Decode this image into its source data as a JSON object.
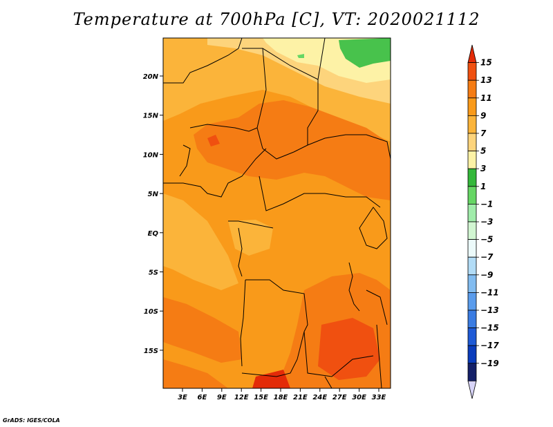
{
  "title": "Temperature at 700hPa [C], VT: 2020021112",
  "credit": "GrADS: IGES/COLA",
  "map": {
    "lat_labels": [
      "20N",
      "15N",
      "10N",
      "5N",
      "EQ",
      "5S",
      "10S",
      "15S"
    ],
    "lon_labels": [
      "3E",
      "6E",
      "9E",
      "12E",
      "15E",
      "18E",
      "21E",
      "24E",
      "27E",
      "30E",
      "33E"
    ]
  },
  "colorbar": {
    "levels": [
      "15",
      "13",
      "11",
      "9",
      "7",
      "5",
      "3",
      "1",
      "−1",
      "−3",
      "−5",
      "−7",
      "−9",
      "−11",
      "−13",
      "−15",
      "−17",
      "−19"
    ],
    "colors": [
      "#e32b08",
      "#f05010",
      "#f57c14",
      "#f99a1a",
      "#fbb43a",
      "#fdd47c",
      "#fdf2a6",
      "#34b83a",
      "#66d664",
      "#a0ecaa",
      "#d2f6d2",
      "#ecfafa",
      "#b2dcf6",
      "#82bcf0",
      "#5a9cec",
      "#3a7ce2",
      "#1e5ad6",
      "#0a3cbc",
      "#142068",
      "#d8d4f8"
    ]
  }
}
